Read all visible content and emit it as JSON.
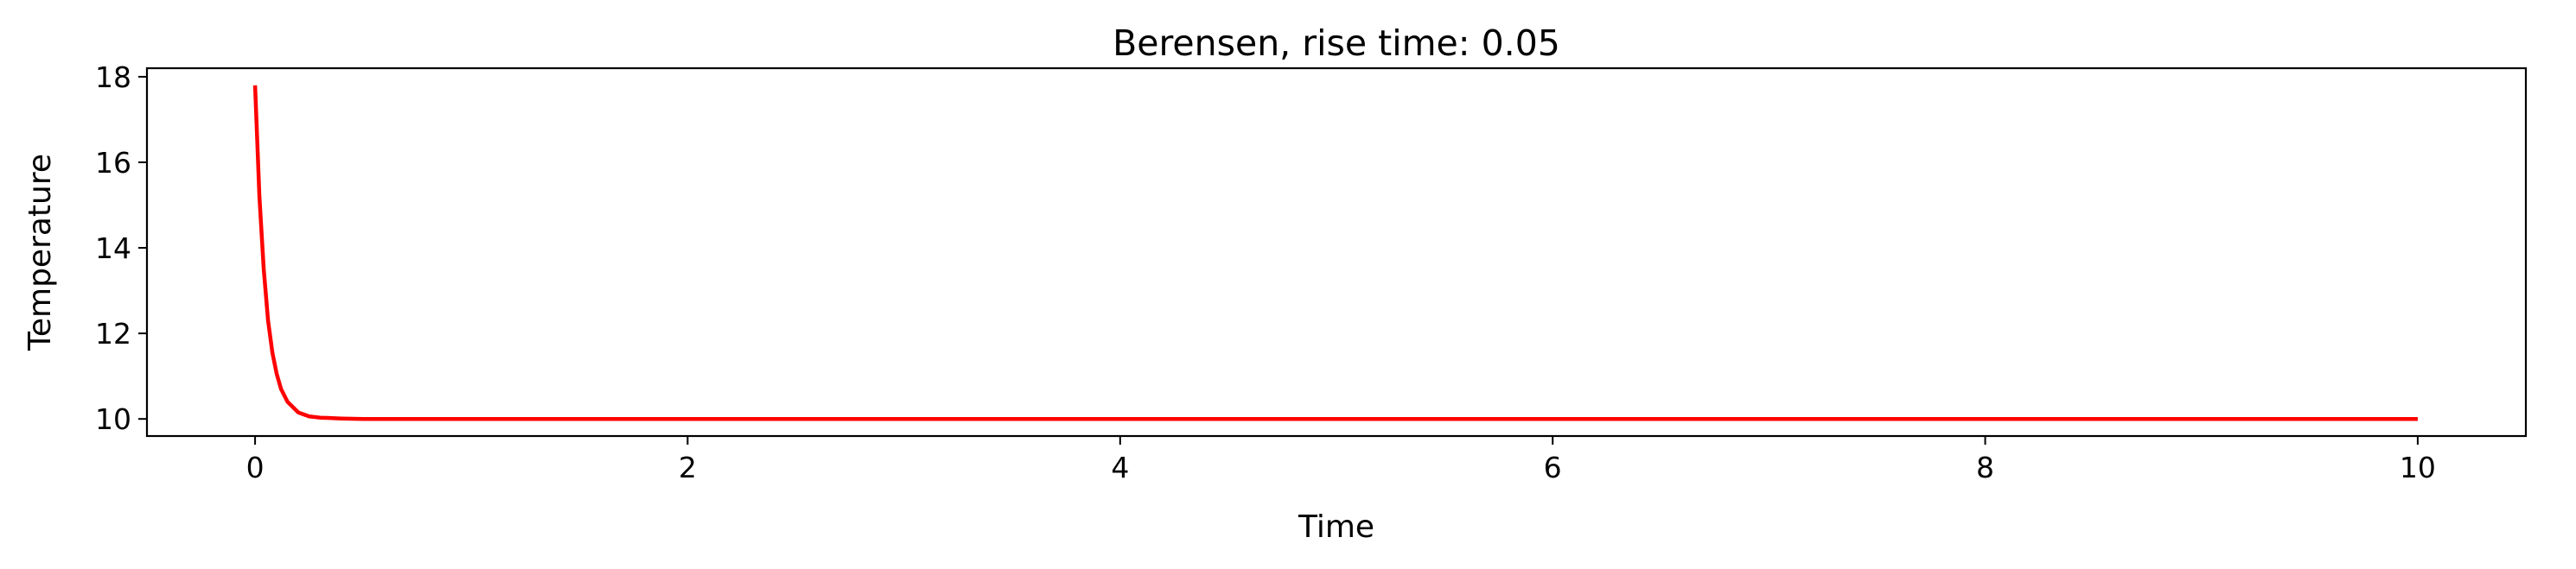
{
  "chart_data": {
    "type": "line",
    "title": "Berensen, rise time: 0.05",
    "xlabel": "Time",
    "ylabel": "Temperature",
    "xlim": [
      -0.5,
      10.5
    ],
    "ylim": [
      9.6,
      18.2
    ],
    "xticks": [
      0,
      2,
      4,
      6,
      8,
      10
    ],
    "yticks": [
      10,
      12,
      14,
      16,
      18
    ],
    "grid": false,
    "legend": "none",
    "series": [
      {
        "color": "#ff0000",
        "x": [
          0,
          0.02,
          0.04,
          0.06,
          0.08,
          0.1,
          0.12,
          0.15,
          0.2,
          0.25,
          0.3,
          0.4,
          0.5,
          0.7,
          1,
          2,
          3,
          4,
          5,
          6,
          7,
          8,
          9,
          10
        ],
        "y": [
          17.8,
          15.2,
          13.5,
          12.3,
          11.55,
          11.05,
          10.7,
          10.4,
          10.15,
          10.06,
          10.03,
          10.01,
          10.0,
          10.0,
          10.0,
          10.0,
          10.0,
          10.0,
          10.0,
          10.0,
          10.0,
          10.0,
          10.0,
          10.0
        ]
      }
    ]
  }
}
